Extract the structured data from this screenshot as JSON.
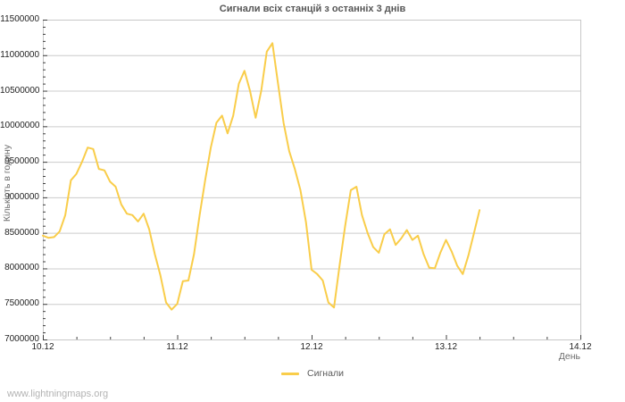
{
  "page": {
    "footer": "www.lightningmaps.org"
  },
  "colors": {
    "line": "#f9cd4a",
    "grid": "#cccccc",
    "axis_border": "#c8c8c8",
    "tick": "#404040"
  },
  "chart_data": {
    "type": "line",
    "title": "Сигнали всіх станцій з останніх 3 днів",
    "xlabel": "День",
    "ylabel": "Кількість в годину",
    "grid": "horizontal-major-only",
    "legend_position": "bottom-center",
    "legend": [
      {
        "name": "Сигнали",
        "color": "#f9cd4a"
      }
    ],
    "ylim": [
      7000000,
      11500000
    ],
    "y_tick_step": 500000,
    "y_minor_tick_step": 100000,
    "y_ticks": [
      {
        "value": 7000000,
        "label": "7000000"
      },
      {
        "value": 7500000,
        "label": "7500000"
      },
      {
        "value": 8000000,
        "label": "8000000"
      },
      {
        "value": 8500000,
        "label": "8500000"
      },
      {
        "value": 9000000,
        "label": "9000000"
      },
      {
        "value": 9500000,
        "label": "9500000"
      },
      {
        "value": 10000000,
        "label": "10000000"
      },
      {
        "value": 10500000,
        "label": "10500000"
      },
      {
        "value": 11000000,
        "label": "11000000"
      },
      {
        "value": 11500000,
        "label": "11500000"
      }
    ],
    "x_range_hours": [
      0,
      96
    ],
    "x_minor_tick_step_hours": 6,
    "x_ticks": [
      {
        "hour": 0,
        "label": "10.12"
      },
      {
        "hour": 24,
        "label": "11.12"
      },
      {
        "hour": 48,
        "label": "12.12"
      },
      {
        "hour": 72,
        "label": "13.12"
      },
      {
        "hour": 96,
        "label": "14.12"
      }
    ],
    "series": [
      {
        "name": "Сигнали",
        "x_start_hour": 0,
        "x_step_hours": 1,
        "values": [
          8460000,
          8430000,
          8440000,
          8520000,
          8750000,
          9240000,
          9330000,
          9500000,
          9700000,
          9680000,
          9400000,
          9380000,
          9220000,
          9150000,
          8900000,
          8770000,
          8750000,
          8660000,
          8770000,
          8550000,
          8200000,
          7900000,
          7520000,
          7420000,
          7500000,
          7820000,
          7830000,
          8200000,
          8750000,
          9250000,
          9700000,
          10050000,
          10150000,
          9900000,
          10150000,
          10600000,
          10780000,
          10500000,
          10120000,
          10500000,
          11050000,
          11170000,
          10600000,
          10050000,
          9650000,
          9400000,
          9100000,
          8650000,
          7980000,
          7920000,
          7830000,
          7520000,
          7450000,
          8050000,
          8600000,
          9100000,
          9150000,
          8750000,
          8500000,
          8300000,
          8220000,
          8480000,
          8550000,
          8330000,
          8420000,
          8540000,
          8400000,
          8460000,
          8200000,
          8010000,
          8000000,
          8220000,
          8400000,
          8240000,
          8040000,
          7920000,
          8180000,
          8500000,
          8820000
        ]
      }
    ]
  }
}
